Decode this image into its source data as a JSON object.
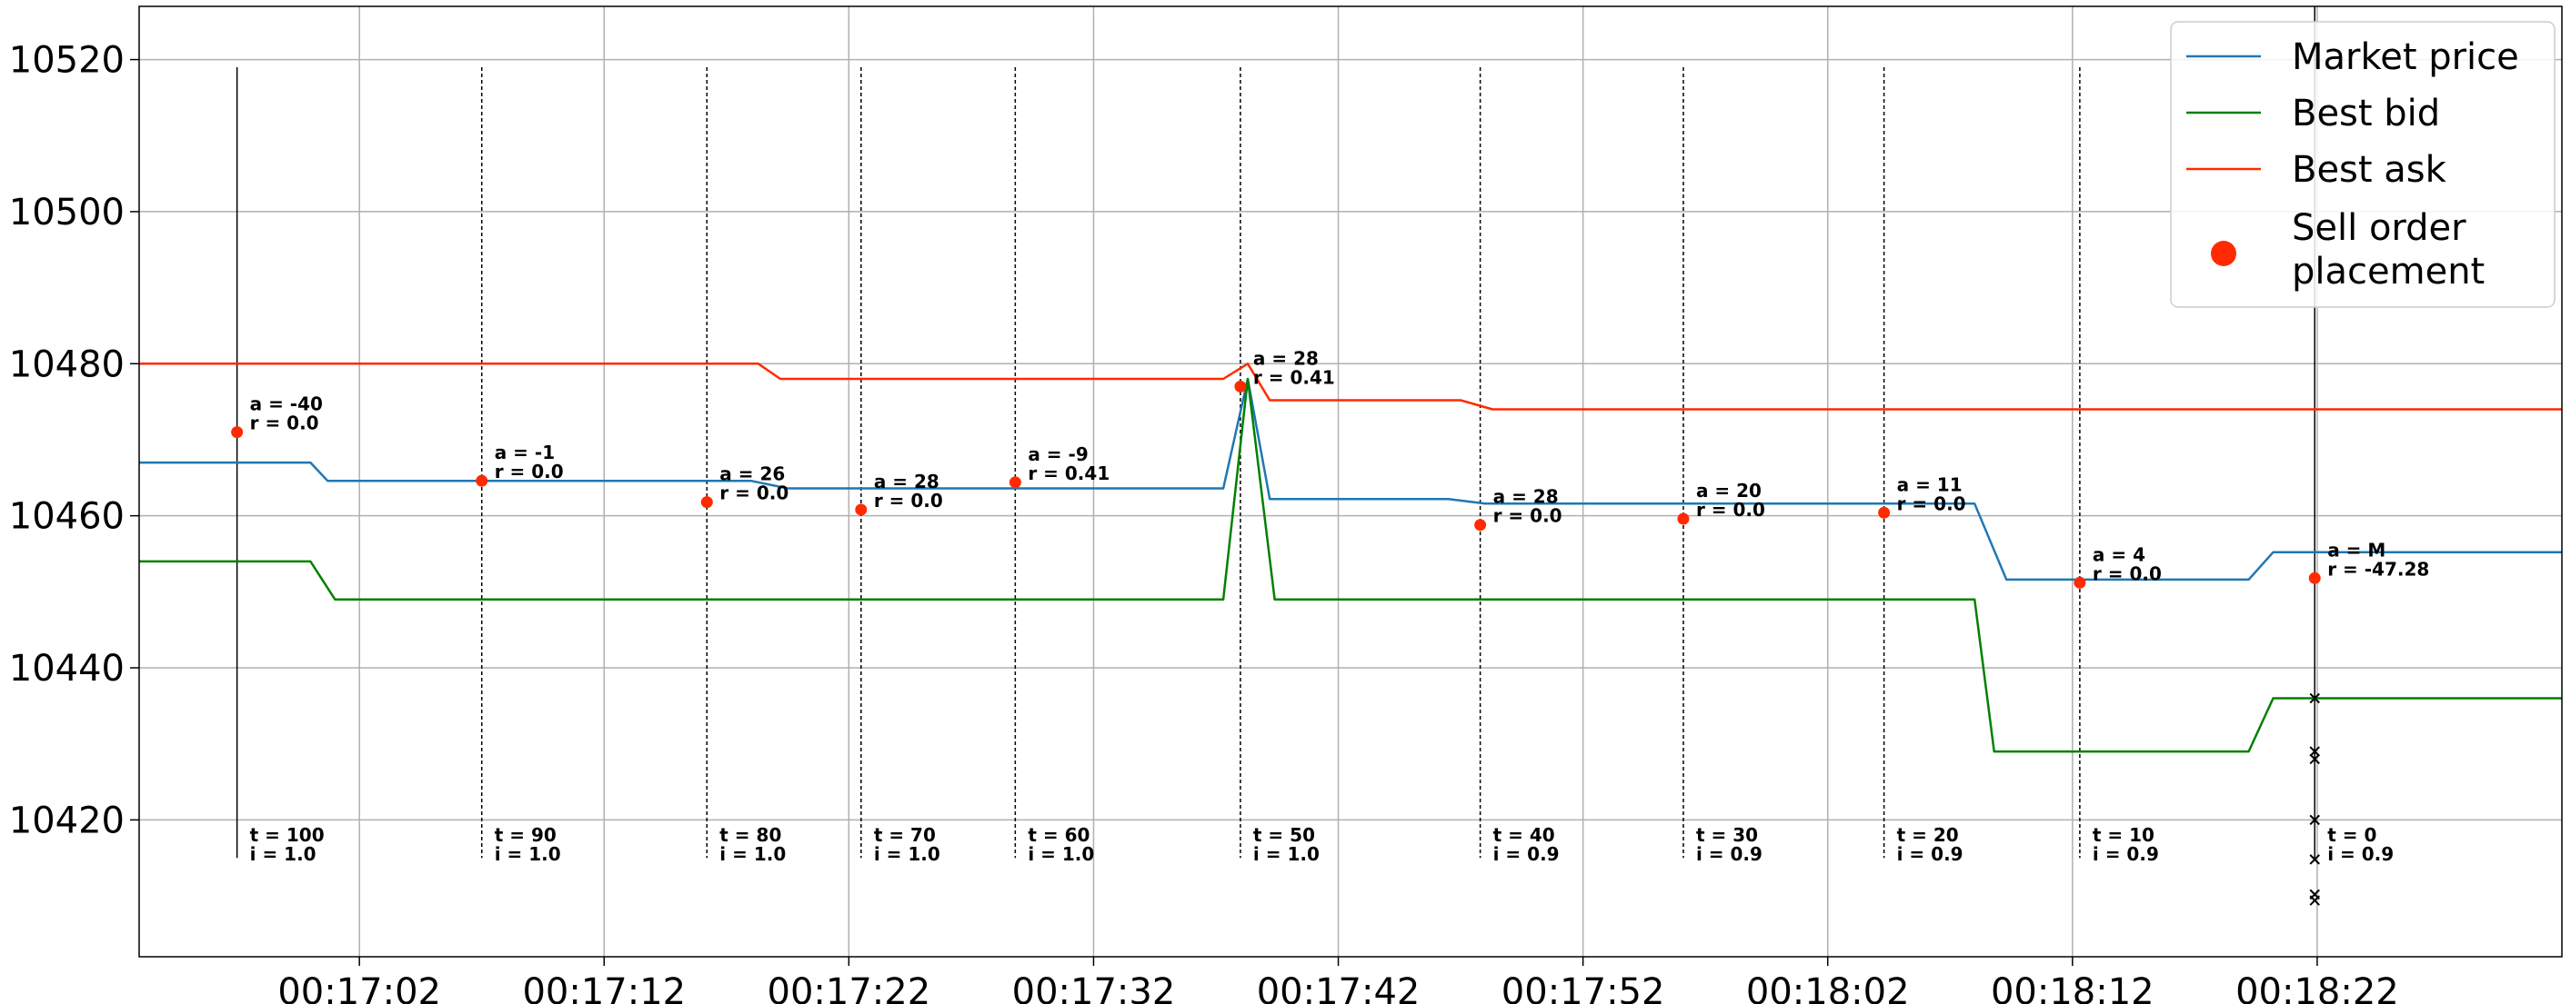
{
  "chart_data": {
    "type": "line",
    "title": "",
    "xlabel": "",
    "ylabel": "",
    "xlim": [
      "00:16:53",
      "00:18:32"
    ],
    "ylim": [
      10402,
      10527
    ],
    "grid": true,
    "legend_position": "top-right",
    "x_ticks": [
      "00:17:02",
      "00:17:12",
      "00:17:22",
      "00:17:32",
      "00:17:42",
      "00:17:52",
      "00:18:02",
      "00:18:12",
      "00:18:22"
    ],
    "y_ticks": [
      10420,
      10440,
      10460,
      10480,
      10500,
      10520
    ],
    "series": [
      {
        "name": "Market price",
        "color": "#1f77b4",
        "points": [
          [
            "00:16:53",
            10467
          ],
          [
            "00:17:00",
            10467
          ],
          [
            "00:17:00.7",
            10464.6
          ],
          [
            "00:17:18",
            10464.6
          ],
          [
            "00:17:19.5",
            10463.6
          ],
          [
            "00:17:37.3",
            10463.6
          ],
          [
            "00:17:38.3",
            10478
          ],
          [
            "00:17:39.2",
            10462.2
          ],
          [
            "00:17:46.5",
            10462.2
          ],
          [
            "00:17:48",
            10461.6
          ],
          [
            "00:18:08",
            10461.6
          ],
          [
            "00:18:09.3",
            10451.6
          ],
          [
            "00:18:19.2",
            10451.6
          ],
          [
            "00:18:20.2",
            10455.2
          ],
          [
            "00:18:32",
            10455.2
          ]
        ]
      },
      {
        "name": "Best bid",
        "color": "#008000",
        "points": [
          [
            "00:16:53",
            10454
          ],
          [
            "00:17:00",
            10454
          ],
          [
            "00:17:01",
            10449
          ],
          [
            "00:17:37.3",
            10449
          ],
          [
            "00:17:38.3",
            10478
          ],
          [
            "00:17:39.4",
            10449
          ],
          [
            "00:18:08",
            10449
          ],
          [
            "00:18:08.8",
            10429
          ],
          [
            "00:18:19.2",
            10429
          ],
          [
            "00:18:20.2",
            10436
          ],
          [
            "00:18:32",
            10436
          ]
        ]
      },
      {
        "name": "Best ask",
        "color": "#ff2a00",
        "points": [
          [
            "00:16:53",
            10480
          ],
          [
            "00:17:18.3",
            10480
          ],
          [
            "00:17:19.2",
            10478
          ],
          [
            "00:17:37.3",
            10478
          ],
          [
            "00:17:38.3",
            10480
          ],
          [
            "00:17:39.2",
            10475.2
          ],
          [
            "00:17:47",
            10475.2
          ],
          [
            "00:17:48.3",
            10474
          ],
          [
            "00:18:32",
            10474
          ]
        ]
      }
    ],
    "scatter_series": {
      "name": "Sell order placement",
      "color": "#ff2a00",
      "points": [
        [
          "00:16:57",
          10471
        ],
        [
          "00:17:07",
          10464.6
        ],
        [
          "00:17:16.2",
          10461.8
        ],
        [
          "00:17:22.5",
          10460.8
        ],
        [
          "00:17:28.8",
          10464.4
        ],
        [
          "00:17:38",
          10477
        ],
        [
          "00:17:47.8",
          10458.8
        ],
        [
          "00:17:56.1",
          10459.6
        ],
        [
          "00:18:04.3",
          10460.4
        ],
        [
          "00:18:12.3",
          10451.2
        ],
        [
          "00:18:21.9",
          10451.8
        ]
      ]
    },
    "x_markers": [
      {
        "x": "00:16:57",
        "style": "solid",
        "y_range": [
          10415,
          10519
        ],
        "top_label": [
          "a = -40",
          "r = 0.0"
        ],
        "bottom_label": [
          "t = 100",
          "i = 1.0"
        ],
        "top_y": 10471
      },
      {
        "x": "00:17:07",
        "style": "dashed",
        "y_range": [
          10415,
          10519
        ],
        "top_label": [
          "a = -1",
          "r = 0.0"
        ],
        "bottom_label": [
          "t = 90",
          "i = 1.0"
        ],
        "top_y": 10464.6
      },
      {
        "x": "00:17:16.2",
        "style": "dashed",
        "y_range": [
          10415,
          10519
        ],
        "top_label": [
          "a = 26",
          "r = 0.0"
        ],
        "bottom_label": [
          "t = 80",
          "i = 1.0"
        ],
        "top_y": 10461.8
      },
      {
        "x": "00:17:22.5",
        "style": "dashed",
        "y_range": [
          10415,
          10519
        ],
        "top_label": [
          "a = 28",
          "r = 0.0"
        ],
        "bottom_label": [
          "t = 70",
          "i = 1.0"
        ],
        "top_y": 10460.8
      },
      {
        "x": "00:17:28.8",
        "style": "dashed",
        "y_range": [
          10415,
          10519
        ],
        "top_label": [
          "a = -9",
          "r = 0.41"
        ],
        "bottom_label": [
          "t = 60",
          "i = 1.0"
        ],
        "top_y": 10464.4
      },
      {
        "x": "00:17:38",
        "style": "dashed",
        "y_range": [
          10415,
          10519
        ],
        "top_label": [
          "a = 28",
          "r = 0.41"
        ],
        "bottom_label": [
          "t = 50",
          "i = 1.0"
        ],
        "top_y": 10477
      },
      {
        "x": "00:17:47.8",
        "style": "dashed",
        "y_range": [
          10415,
          10519
        ],
        "top_label": [
          "a = 28",
          "r = 0.0"
        ],
        "bottom_label": [
          "t = 40",
          "i = 0.9"
        ],
        "top_y": 10458.8
      },
      {
        "x": "00:17:56.1",
        "style": "dashed",
        "y_range": [
          10415,
          10519
        ],
        "top_label": [
          "a = 20",
          "r = 0.0"
        ],
        "bottom_label": [
          "t = 30",
          "i = 0.9"
        ],
        "top_y": 10459.6
      },
      {
        "x": "00:18:04.3",
        "style": "dashed",
        "y_range": [
          10415,
          10519
        ],
        "top_label": [
          "a = 11",
          "r = 0.0"
        ],
        "bottom_label": [
          "t = 20",
          "i = 0.9"
        ],
        "top_y": 10460.4
      },
      {
        "x": "00:18:12.3",
        "style": "dashed",
        "y_range": [
          10415,
          10519
        ],
        "top_label": [
          "a = 4",
          "r = 0.0"
        ],
        "bottom_label": [
          "t = 10",
          "i = 0.9"
        ],
        "top_y": 10451.2
      },
      {
        "x": "00:18:21.9",
        "style": "solid",
        "y_range": [
          10415,
          10527
        ],
        "top_label": [
          "a = M",
          "r = -47.28"
        ],
        "bottom_label": [
          "t = 0",
          "i = 0.9"
        ],
        "top_y": 10451.8
      }
    ],
    "x_markers_points": {
      "marker": "x",
      "color": "#000000",
      "points": [
        [
          "00:18:21.9",
          10436
        ],
        [
          "00:18:21.9",
          10429
        ],
        [
          "00:18:21.9",
          10428
        ],
        [
          "00:18:21.9",
          10420
        ],
        [
          "00:18:21.9",
          10414.8
        ],
        [
          "00:18:21.9",
          10410.2
        ],
        [
          "00:18:21.9",
          10409.4
        ]
      ]
    }
  }
}
